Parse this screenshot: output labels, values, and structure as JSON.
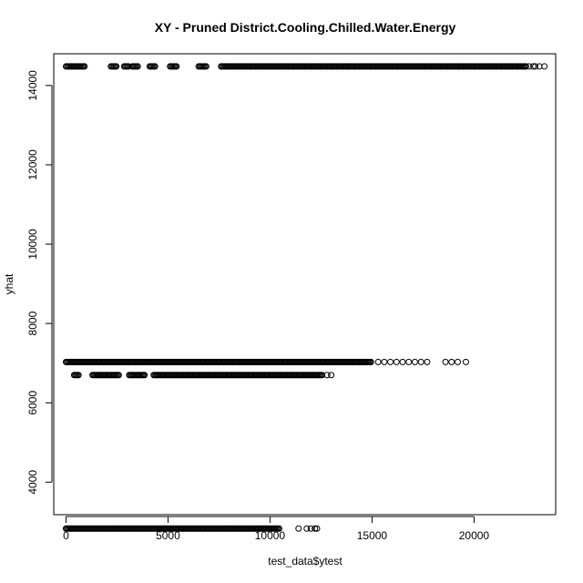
{
  "chart_data": {
    "type": "scatter",
    "title": "XY - Pruned District.Cooling.Chilled.Water.Energy",
    "xlabel": "test_data$ytest",
    "ylabel": "yhat",
    "xlim": [
      -600,
      24000
    ],
    "ylim": [
      3180,
      14800
    ],
    "x_ticks": [
      0,
      5000,
      10000,
      15000,
      20000
    ],
    "y_ticks": [
      4000,
      6000,
      8000,
      10000,
      12000,
      14000
    ],
    "point_marker": "open circle",
    "grid": false,
    "legend": "none",
    "series": [
      {
        "y": 14480,
        "x_ranges": [
          [
            0,
            950
          ],
          [
            2200,
            2500
          ],
          [
            2850,
            3100
          ],
          [
            3250,
            3550
          ],
          [
            4100,
            4400
          ],
          [
            5100,
            5450
          ],
          [
            6500,
            6900
          ],
          [
            7600,
            22600
          ]
        ],
        "x_points": [
          22700,
          22900,
          23000,
          23200,
          23450
        ]
      },
      {
        "y": 7030,
        "x_ranges": [
          [
            0,
            15000
          ]
        ],
        "x_points": [
          15300,
          15600,
          15900,
          16200,
          16500,
          16800,
          17100,
          17400,
          17700,
          18600,
          18900,
          19200,
          19600
        ]
      },
      {
        "y": 6700,
        "x_ranges": [
          [
            400,
            650
          ],
          [
            1300,
            2600
          ],
          [
            3100,
            3900
          ],
          [
            4300,
            12600
          ]
        ],
        "x_points": [
          12800,
          13000
        ]
      },
      {
        "y": 2830,
        "x_ranges": [
          [
            0,
            10500
          ]
        ],
        "x_points": [
          11400,
          11800,
          12000,
          12200,
          12300
        ]
      }
    ]
  }
}
